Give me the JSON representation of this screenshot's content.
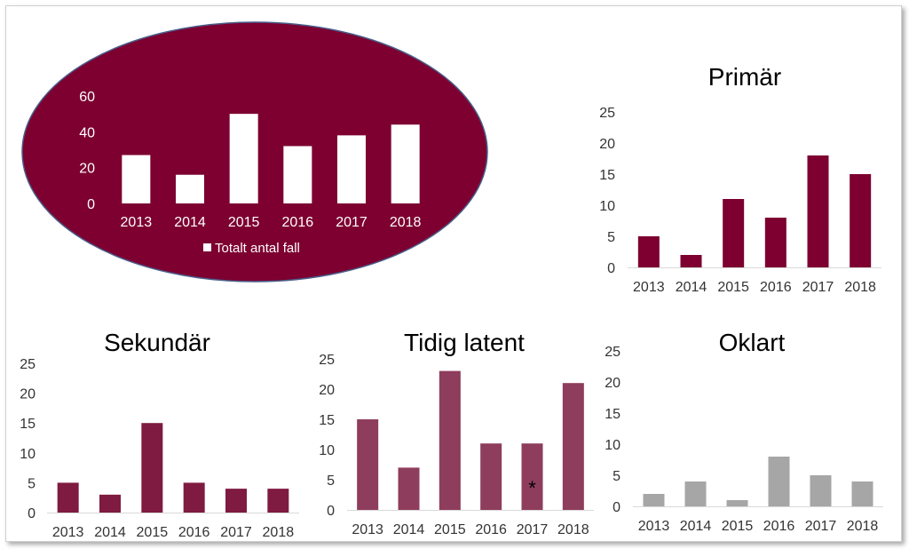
{
  "chart_data": [
    {
      "type": "bar",
      "style": "oval",
      "title": "",
      "categories": [
        "2013",
        "2014",
        "2015",
        "2016",
        "2017",
        "2018"
      ],
      "series": [
        {
          "name": "Totalt antal fall",
          "values": [
            27,
            16,
            50,
            32,
            38,
            44
          ],
          "color": "#ffffff"
        }
      ],
      "ylim": [
        0,
        60
      ],
      "yticks": [
        0,
        20,
        40,
        60
      ],
      "background": "#7d0030",
      "legend": "bottom"
    },
    {
      "type": "bar",
      "title": "Primär",
      "categories": [
        "2013",
        "2014",
        "2015",
        "2016",
        "2017",
        "2018"
      ],
      "series": [
        {
          "values": [
            5,
            2,
            11,
            8,
            18,
            15
          ],
          "color": "#7d0030"
        }
      ],
      "ylim": [
        0,
        25
      ],
      "yticks": [
        0,
        5,
        10,
        15,
        20,
        25
      ]
    },
    {
      "type": "bar",
      "title": "Sekundär",
      "categories": [
        "2013",
        "2014",
        "2015",
        "2016",
        "2017",
        "2018"
      ],
      "series": [
        {
          "values": [
            5,
            3,
            15,
            5,
            4,
            4
          ],
          "color": "#7f1a40"
        }
      ],
      "ylim": [
        0,
        25
      ],
      "yticks": [
        0,
        5,
        10,
        15,
        20,
        25
      ]
    },
    {
      "type": "bar",
      "title": "Tidig latent",
      "categories": [
        "2013",
        "2014",
        "2015",
        "2016",
        "2017",
        "2018"
      ],
      "series": [
        {
          "values": [
            15,
            7,
            23,
            11,
            11,
            21
          ],
          "color": "#8e3d5c"
        }
      ],
      "ylim": [
        0,
        25
      ],
      "yticks": [
        0,
        5,
        10,
        15,
        20,
        25
      ],
      "annotations": [
        {
          "category": "2017",
          "text": "*"
        }
      ]
    },
    {
      "type": "bar",
      "title": "Oklart",
      "categories": [
        "2013",
        "2014",
        "2015",
        "2016",
        "2017",
        "2018"
      ],
      "series": [
        {
          "values": [
            2,
            4,
            1,
            8,
            5,
            4
          ],
          "color": "#a6a6a6"
        }
      ],
      "ylim": [
        0,
        25
      ],
      "yticks": [
        0,
        5,
        10,
        15,
        20,
        25
      ]
    }
  ]
}
